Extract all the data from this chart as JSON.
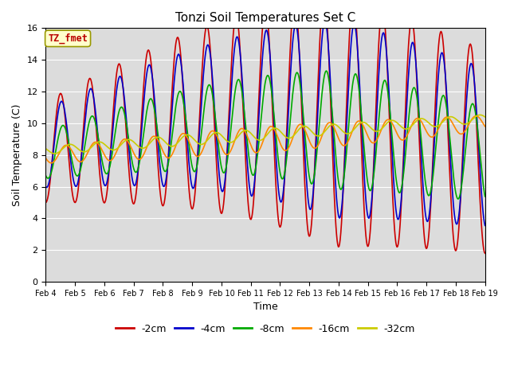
{
  "title": "Tonzi Soil Temperatures Set C",
  "xlabel": "Time",
  "ylabel": "Soil Temperature (C)",
  "ylim": [
    0,
    16
  ],
  "yticks": [
    0,
    2,
    4,
    6,
    8,
    10,
    12,
    14,
    16
  ],
  "legend_label": "TZ_fmet",
  "series_labels": [
    "-2cm",
    "-4cm",
    "-8cm",
    "-16cm",
    "-32cm"
  ],
  "series_colors": [
    "#cc0000",
    "#0000cc",
    "#00aa00",
    "#ff8800",
    "#cccc00"
  ],
  "background_color": "#dcdcdc",
  "annotation_box_color": "#ffffcc",
  "annotation_text_color": "#bb0000",
  "linewidth": 1.2,
  "x_date_labels": [
    "Feb 4",
    "Feb 5",
    "Feb 6",
    "Feb 7",
    "Feb 8",
    "Feb 9",
    "Feb 10",
    "Feb 11",
    "Feb 12",
    "Feb 13",
    "Feb 14",
    "Feb 15",
    "Feb 16",
    "Feb 17",
    "Feb 18",
    "Feb 19"
  ]
}
